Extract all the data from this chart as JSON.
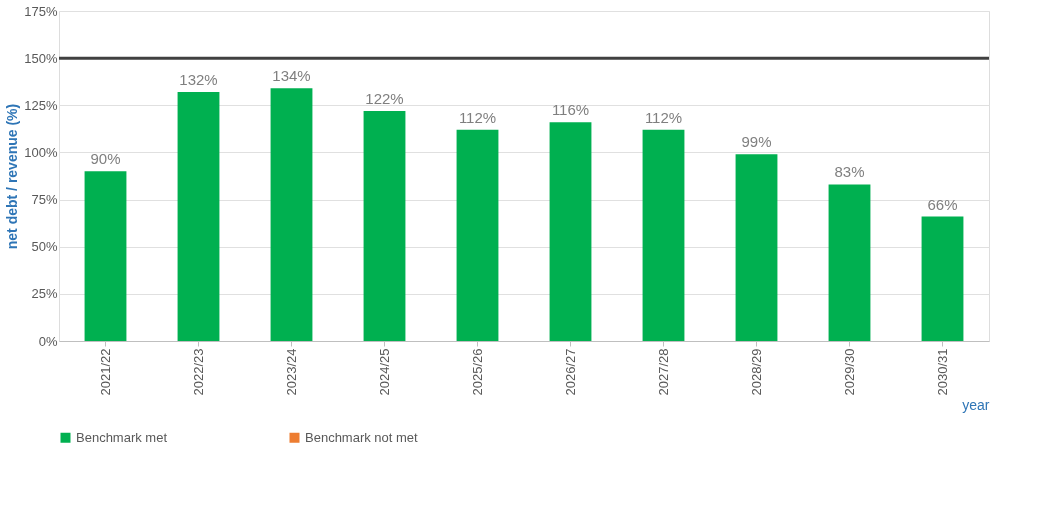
{
  "chart_data": {
    "type": "bar",
    "xlabel": "year",
    "ylabel": "net debt / revenue (%)",
    "categories": [
      "2021/22",
      "2022/23",
      "2023/24",
      "2024/25",
      "2025/26",
      "2026/27",
      "2027/28",
      "2028/29",
      "2029/30",
      "2030/31"
    ],
    "series": [
      {
        "name": "Benchmark met",
        "color": "#00b050",
        "values": [
          90,
          132,
          134,
          122,
          112,
          116,
          112,
          99,
          83,
          66
        ],
        "value_labels": [
          "90%",
          "132%",
          "134%",
          "122%",
          "112%",
          "116%",
          "112%",
          "99%",
          "83%",
          "66%"
        ]
      },
      {
        "name": "Benchmark not met",
        "color": "#ed7d31",
        "values": [
          null,
          null,
          null,
          null,
          null,
          null,
          null,
          null,
          null,
          null
        ]
      }
    ],
    "ylim": [
      0,
      175
    ],
    "yticks": [
      {
        "value": 0,
        "label": "0%"
      },
      {
        "value": 25,
        "label": "25%"
      },
      {
        "value": 50,
        "label": "50%"
      },
      {
        "value": 75,
        "label": "75%"
      },
      {
        "value": 100,
        "label": "100%"
      },
      {
        "value": 125,
        "label": "125%"
      },
      {
        "value": 150,
        "label": "150%"
      },
      {
        "value": 175,
        "label": "175%"
      }
    ],
    "ref_lines": [
      {
        "axis": "y",
        "value": 150,
        "color": "#404040"
      }
    ],
    "grid": "y",
    "legend": "bottom"
  }
}
